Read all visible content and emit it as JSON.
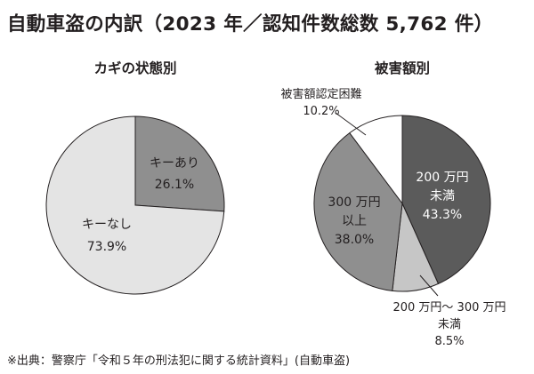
{
  "title": "自動車盗の内訳（2023 年／認知件数総数 5,762 件）",
  "footnote": "※出典：警察庁「令和５年の刑法犯に関する統計資料」(自動車盗)",
  "colors": {
    "dark": "#5b5b5b",
    "mid": "#8f8f8f",
    "light": "#c6c6c6",
    "lighter": "#e4e4e4",
    "white": "#ffffff",
    "stroke": "#231f20"
  },
  "chart_data": [
    {
      "type": "pie",
      "title": "カギの状態別",
      "slices": [
        {
          "label": "キーあり",
          "value": 26.1,
          "value_label": "26.1%",
          "color": "#8f8f8f"
        },
        {
          "label": "キーなし",
          "value": 73.9,
          "value_label": "73.9%",
          "color": "#e4e4e4"
        }
      ]
    },
    {
      "type": "pie",
      "title": "被害額別",
      "slices": [
        {
          "label_lines": [
            "200 万円",
            "未満"
          ],
          "value": 43.3,
          "value_label": "43.3%",
          "color": "#5b5b5b"
        },
        {
          "label_lines": [
            "200 万円～ 300 万円",
            "未満"
          ],
          "value": 8.5,
          "value_label": "8.5%",
          "color": "#c6c6c6"
        },
        {
          "label_lines": [
            "300 万円",
            "以上"
          ],
          "value": 38.0,
          "value_label": "38.0%",
          "color": "#8f8f8f"
        },
        {
          "label_lines": [
            "被害額認定困難"
          ],
          "value": 10.2,
          "value_label": "10.2%",
          "color": "#ffffff"
        }
      ]
    }
  ]
}
